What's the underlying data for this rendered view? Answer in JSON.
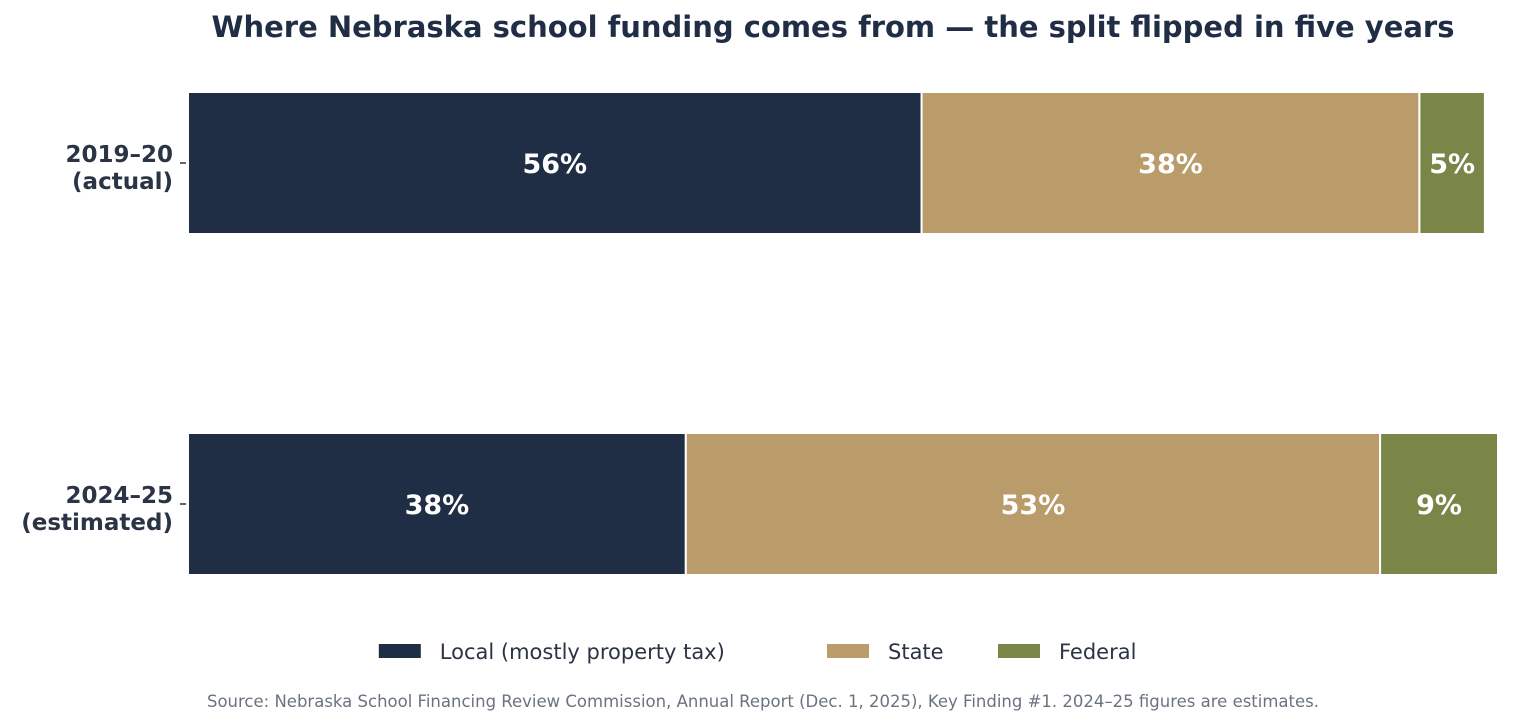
{
  "chart_data": {
    "type": "bar",
    "orientation": "horizontal",
    "stacked": true,
    "title": "Where Nebraska school funding comes from — the split flipped in five years",
    "categories": [
      [
        "2019–20",
        "(actual)"
      ],
      [
        "2024–25",
        "(estimated)"
      ]
    ],
    "series": [
      {
        "name": "Local (mostly property tax)",
        "color": "#1f2d45",
        "values": [
          56,
          38
        ]
      },
      {
        "name": "State",
        "color": "#b99c6a",
        "values": [
          38,
          53
        ]
      },
      {
        "name": "Federal",
        "color": "#7a8548",
        "values": [
          5,
          9
        ]
      }
    ],
    "data_labels": [
      [
        "56%",
        "38%",
        "5%"
      ],
      [
        "38%",
        "53%",
        "9%"
      ]
    ],
    "xlim": [
      0,
      100
    ],
    "grid": false,
    "legend_position": "bottom"
  },
  "source": "Source: Nebraska School Financing Review Commission, Annual Report (Dec. 1, 2025), Key Finding #1. 2024–25 figures are estimates."
}
